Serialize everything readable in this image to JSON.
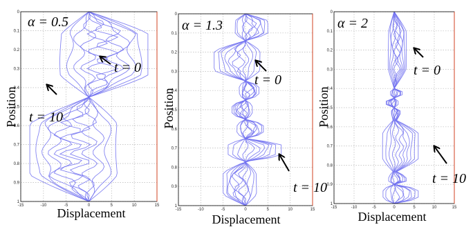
{
  "chart_data": [
    {
      "type": "line",
      "title": "",
      "alpha_label": "α = 0.5",
      "xlabel": "Displacement",
      "ylabel": "Position",
      "xlim": [
        -15,
        15
      ],
      "ylim": [
        0,
        1
      ],
      "y_reversed": true,
      "grid": true,
      "xticks": [
        -15,
        -10,
        -5,
        0,
        5,
        10,
        15
      ],
      "yticks": [
        0,
        0.1,
        0.2,
        0.3,
        0.4,
        0.5,
        0.6,
        0.7,
        0.8,
        0.9,
        1
      ],
      "annotations": [
        {
          "text": "t = 0"
        },
        {
          "text": "t = 10"
        }
      ],
      "series_description": "Blue displacement profiles for time steps t = 0 … 10",
      "pattern": {
        "nodes": [
          0,
          0.45,
          1.0
        ],
        "peak_x": [
          13,
          -13
        ],
        "waviness": 2.5
      }
    },
    {
      "type": "line",
      "title": "",
      "alpha_label": "α = 1.3",
      "xlabel": "Displacement",
      "ylabel": "Position",
      "xlim": [
        -15,
        15
      ],
      "ylim": [
        0,
        1
      ],
      "y_reversed": true,
      "grid": true,
      "xticks": [
        -15,
        -10,
        -5,
        0,
        5,
        10,
        15
      ],
      "yticks": [
        0,
        0.1,
        0.2,
        0.3,
        0.4,
        0.5,
        0.6,
        0.7,
        0.8,
        0.9,
        1
      ],
      "annotations": [
        {
          "text": "t = 0"
        },
        {
          "text": "t = 10"
        }
      ],
      "pattern": {
        "nodes": [
          0,
          0.14,
          0.35,
          0.45,
          0.55,
          0.65,
          0.77,
          1.0
        ],
        "peak_x": [
          5,
          -7,
          3,
          -3,
          4,
          8,
          -5
        ],
        "waviness": 1.0
      }
    },
    {
      "type": "line",
      "title": "",
      "alpha_label": "α = 2",
      "xlabel": "Displacement",
      "ylabel": "Position",
      "xlim": [
        -15,
        15
      ],
      "ylim": [
        0,
        1
      ],
      "y_reversed": true,
      "grid": true,
      "xticks": [
        -15,
        -10,
        -5,
        0,
        5,
        10,
        15
      ],
      "yticks": [
        0,
        0.1,
        0.2,
        0.3,
        0.4,
        0.5,
        0.6,
        0.7,
        0.8,
        0.9,
        1
      ],
      "annotations": [
        {
          "text": "t = 0"
        },
        {
          "text": "t = 10"
        }
      ],
      "pattern": {
        "nodes": [
          0,
          0.4,
          0.45,
          0.5,
          0.56,
          0.84,
          0.9,
          1.0
        ],
        "peak_x": [
          3,
          2,
          -2,
          1.5,
          6,
          3,
          6
        ],
        "waviness": 0.6
      }
    }
  ],
  "colors": {
    "curve": "#6f6ff0",
    "grid": "#b8b8b8",
    "axis": "#000000",
    "right_axis": "#d04020"
  }
}
